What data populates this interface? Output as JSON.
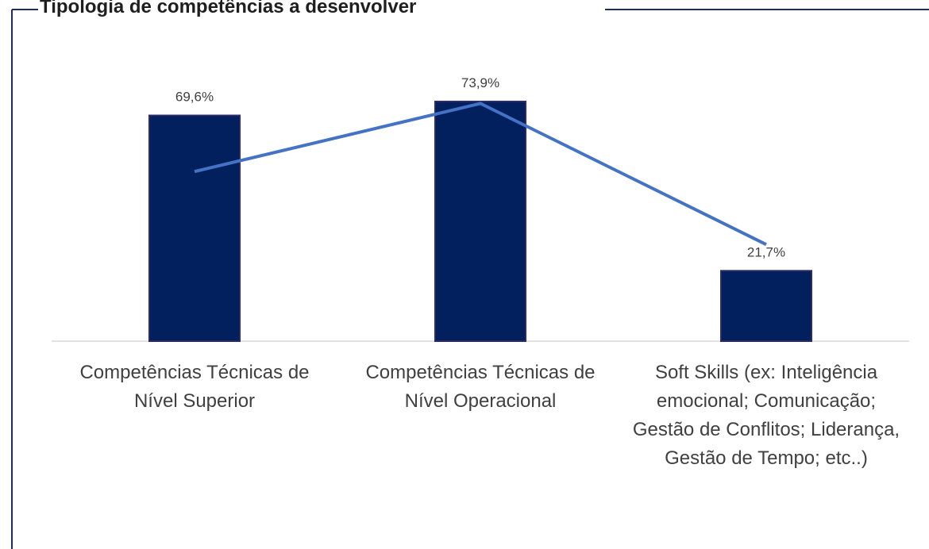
{
  "chart_data": {
    "type": "bar",
    "title": "Tipologia de competências a desenvolver",
    "categories": [
      "Competências Técnicas de Nível Superior",
      "Competências Técnicas de Nível Operacional",
      "Soft Skills (ex: Inteligência emocional; Comunicação; Gestão de Conflitos; Liderança, Gestão de Tempo; etc..)"
    ],
    "series": [
      {
        "type": "bar",
        "color": "#021f5e",
        "values": [
          69.6,
          73.9,
          21.7
        ],
        "value_labels": [
          "69,6%",
          "73,9%",
          "21,7%"
        ]
      },
      {
        "type": "line",
        "color": "#4472c4",
        "values": [
          52.3,
          73.3,
          29.8
        ]
      }
    ],
    "ylim": [
      0,
      80
    ]
  }
}
